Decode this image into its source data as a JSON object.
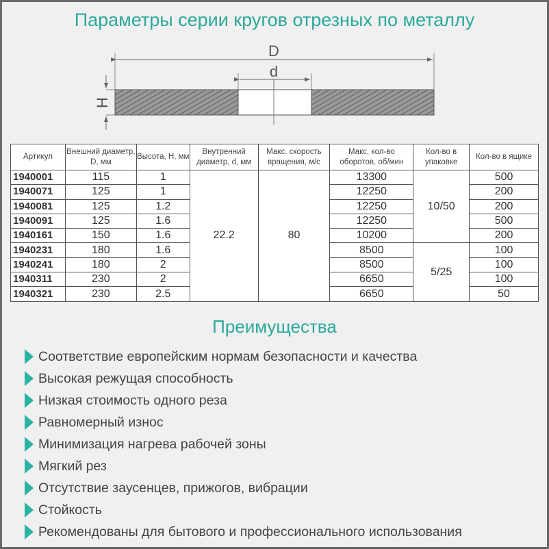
{
  "title": "Параметры серии кругов отрезных по металлу",
  "diagram": {
    "D": "D",
    "d": "d",
    "H": "H"
  },
  "table": {
    "headers": [
      "Артикул",
      "Внешний диаметр, D, мм",
      "Высота, H, мм",
      "Внутренний диаметр, d, мм",
      "Макс. скорость вращения, м/с",
      "Макс, кол-во оборотов, об/мин",
      "Кол-во в упаковке",
      "Кол-во в ящике"
    ],
    "rows": [
      {
        "art": "1940001",
        "D": "115",
        "H": "1",
        "rpm": "13300",
        "box": "500"
      },
      {
        "art": "1940071",
        "D": "125",
        "H": "1",
        "rpm": "12250",
        "box": "200"
      },
      {
        "art": "1940081",
        "D": "125",
        "H": "1.2",
        "rpm": "12250",
        "box": "200"
      },
      {
        "art": "1940091",
        "D": "125",
        "H": "1.6",
        "rpm": "12250",
        "box": "500"
      },
      {
        "art": "1940161",
        "D": "150",
        "H": "1.6",
        "rpm": "10200",
        "box": "200"
      },
      {
        "art": "1940231",
        "D": "180",
        "H": "1.6",
        "rpm": "8500",
        "box": "100"
      },
      {
        "art": "1940241",
        "D": "180",
        "H": "2",
        "rpm": "8500",
        "box": "100"
      },
      {
        "art": "1940311",
        "D": "230",
        "H": "2",
        "rpm": "6650",
        "box": "100"
      },
      {
        "art": "1940321",
        "D": "230",
        "H": "2.5",
        "rpm": "6650",
        "box": "50"
      }
    ],
    "inner_d": "22.2",
    "speed": "80",
    "pack_a": "10/50",
    "pack_b": "5/25"
  },
  "advantages": {
    "title": "Преимущества",
    "accent": "#2aa99b",
    "items": [
      "Соответствие европейским нормам безопасности и качества",
      "Высокая режущая способность",
      "Низкая стоимость одного реза",
      "Равномерный износ",
      "Минимизация нагрева рабочей зоны",
      "Мягкий рез",
      "Отсутствие заусенцев, прижогов, вибрации",
      "Стойкость",
      "Рекомендованы для бытового и профессионального использования"
    ]
  }
}
